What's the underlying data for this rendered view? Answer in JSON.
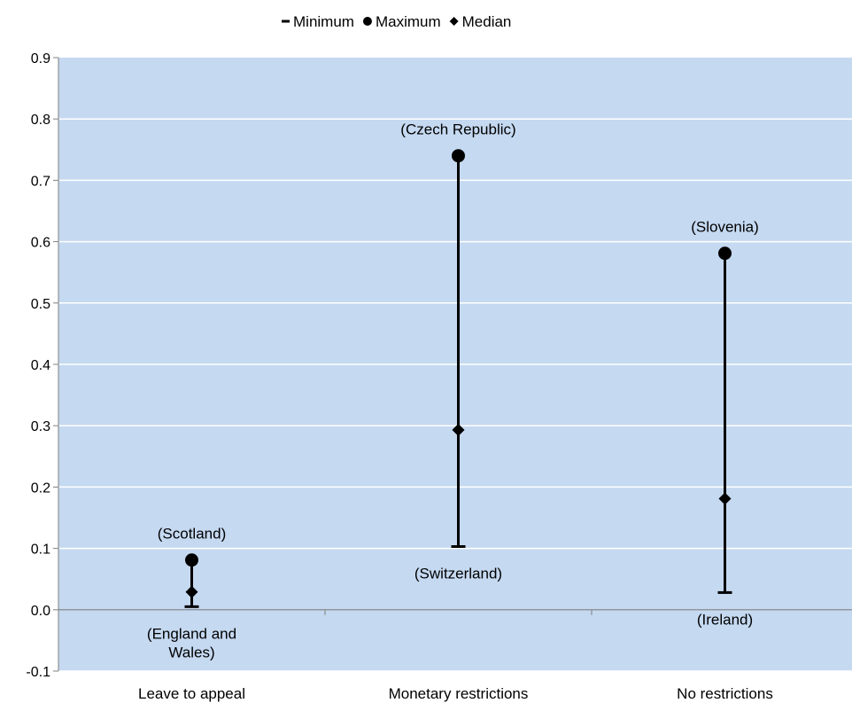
{
  "chart_data": {
    "type": "high-low",
    "categories": [
      "Leave to appeal",
      "Monetary restrictions",
      "No restrictions"
    ],
    "series": [
      {
        "name": "Minimum",
        "marker": "dash",
        "values": [
          0.005,
          0.103,
          0.028
        ]
      },
      {
        "name": "Maximum",
        "marker": "circle",
        "values": [
          0.081,
          0.74,
          0.581
        ]
      },
      {
        "name": "Median",
        "marker": "diamond",
        "values": [
          0.029,
          0.293,
          0.181
        ]
      }
    ],
    "annotations": [
      {
        "category_index": 0,
        "position": "above-max",
        "lines": [
          "(Scotland)"
        ]
      },
      {
        "category_index": 0,
        "position": "below-min",
        "lines": [
          "(England and",
          "Wales)"
        ]
      },
      {
        "category_index": 1,
        "position": "above-max",
        "lines": [
          "(Czech Republic)"
        ]
      },
      {
        "category_index": 1,
        "position": "below-min",
        "lines": [
          "(Switzerland)"
        ]
      },
      {
        "category_index": 2,
        "position": "above-max",
        "lines": [
          "(Slovenia)"
        ]
      },
      {
        "category_index": 2,
        "position": "below-min",
        "lines": [
          "(Ireland)"
        ]
      }
    ],
    "ylim": [
      -0.1,
      0.9
    ],
    "yticks": [
      "-0.1",
      "0.0",
      "0.1",
      "0.2",
      "0.3",
      "0.4",
      "0.5",
      "0.6",
      "0.7",
      "0.8",
      "0.9"
    ],
    "grid": true,
    "legend_position": "top-center",
    "title": "",
    "xlabel": "",
    "ylabel": "",
    "colors": {
      "plot_background": "#c5d9f1",
      "gridline": "#ffffff",
      "marks": "#000000",
      "axis": "#808080"
    }
  }
}
